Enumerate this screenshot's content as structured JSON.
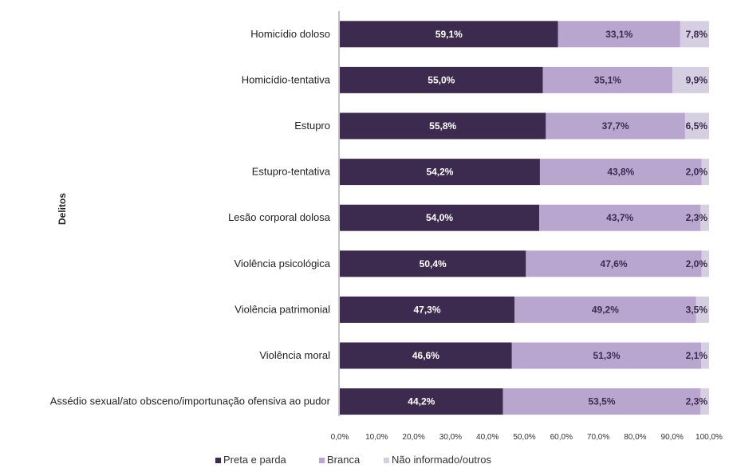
{
  "chart_data": {
    "type": "bar",
    "orientation": "horizontal",
    "stacked": true,
    "categories": [
      "Homicídio doloso",
      "Homicídio-tentativa",
      "Estupro",
      "Estupro-tentativa",
      "Lesão corporal dolosa",
      "Violência psicológica",
      "Violência patrimonial",
      "Violência moral",
      "Assédio sexual/ato obsceno/importunação ofensiva ao pudor"
    ],
    "series": [
      {
        "name": "Preta e parda",
        "values": [
          59.1,
          55.0,
          55.8,
          54.2,
          54.0,
          50.4,
          47.3,
          46.6,
          44.2
        ],
        "labels": [
          "59,1%",
          "55,0%",
          "55,8%",
          "54,2%",
          "54,0%",
          "50,4%",
          "47,3%",
          "46,6%",
          "44,2%"
        ]
      },
      {
        "name": "Branca",
        "values": [
          33.1,
          35.1,
          37.7,
          43.8,
          43.7,
          47.6,
          49.2,
          51.3,
          53.5
        ],
        "labels": [
          "33,1%",
          "35,1%",
          "37,7%",
          "43,8%",
          "43,7%",
          "47,6%",
          "49,2%",
          "51,3%",
          "53,5%"
        ]
      },
      {
        "name": "Não informado/outros",
        "values": [
          7.8,
          9.9,
          6.5,
          2.0,
          2.3,
          2.0,
          3.5,
          2.1,
          2.3
        ],
        "labels": [
          "7,8%",
          "9,9%",
          "6,5%",
          "2,0%",
          "2,3%",
          "2,0%",
          "3,5%",
          "2,1%",
          "2,3%"
        ]
      }
    ],
    "colors": [
      "#3d2b4f",
      "#b9a6cf",
      "#d6cfe2"
    ],
    "label_colors": [
      "#ffffff",
      "#3d2b4f",
      "#3d2b4f"
    ],
    "xlim": [
      0,
      100
    ],
    "x_ticks": [
      "0,0%",
      "10,0%",
      "20,0%",
      "30,0%",
      "40,0%",
      "50,0%",
      "60,0%",
      "70,0%",
      "80,0%",
      "90,0%",
      "100,0%"
    ],
    "ylabel": "Delitos",
    "xlabel": "",
    "title": "",
    "grid": false,
    "legend_position": "bottom-left"
  }
}
